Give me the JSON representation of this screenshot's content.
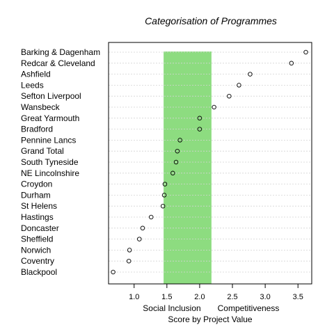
{
  "chart_data": {
    "type": "scatter",
    "style": "dotplot",
    "title": "Categorisation of Programmes",
    "xlabel": "Score by Project Value",
    "region_labels": {
      "left": "Social Inclusion",
      "right": "Competitiveness"
    },
    "categories": [
      "Barking & Dagenham",
      "Redcar & Cleveland",
      "Ashfield",
      "Leeds",
      "Sefton Liverpool",
      "Wansbeck",
      "Great Yarmouth",
      "Bradford",
      "Pennine Lancs",
      "Grand Total",
      "South Tyneside",
      "NE Lincolnshire",
      "Croydon",
      "Durham",
      "St Helens",
      "Hastings",
      "Doncaster",
      "Sheffield",
      "Norwich",
      "Coventry",
      "Blackpool"
    ],
    "values": [
      3.62,
      3.4,
      2.77,
      2.6,
      2.45,
      2.22,
      2.0,
      2.0,
      1.7,
      1.66,
      1.64,
      1.59,
      1.47,
      1.46,
      1.44,
      1.26,
      1.13,
      1.08,
      0.93,
      0.92,
      0.68
    ],
    "band": {
      "from": 1.45,
      "to": 2.18,
      "color": "#8ddc80"
    },
    "xlim": [
      0.61,
      3.71
    ],
    "xticks": [
      1.0,
      1.5,
      2.0,
      2.5,
      3.0,
      3.5
    ],
    "xtick_labels": [
      "1.0",
      "1.5",
      "2.0",
      "2.5",
      "3.0",
      "3.5"
    ],
    "grid": "horizontal dotted",
    "colors": {
      "marker": "#000000",
      "grid": "#d3d3d3",
      "band": "#8ddc80"
    }
  }
}
